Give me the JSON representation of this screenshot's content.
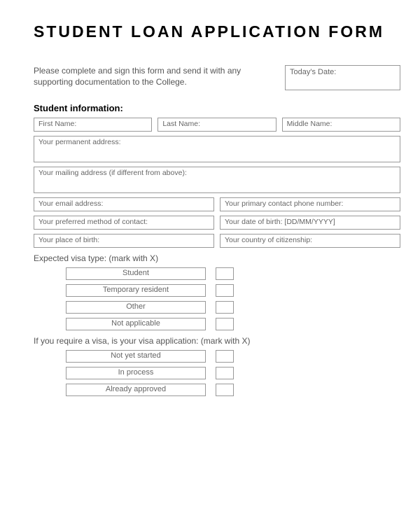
{
  "title": "STUDENT LOAN APPLICATION FORM",
  "intro": "Please complete and sign this form and send it with any supporting documentation to the College.",
  "date_label": "Today's Date:",
  "section_student": "Student information:",
  "fields": {
    "first": "First Name:",
    "last": "Last Name:",
    "middle": "Middle Name:",
    "perm_addr": "Your permanent address:",
    "mail_addr": "Your mailing address (if different from above):",
    "email": "Your email address:",
    "phone": "Your primary contact phone number:",
    "contact_method": "Your preferred method of contact:",
    "dob": "Your date of birth:   [DD/MM/YYYY]",
    "pob": "Your place of birth:",
    "citizenship": "Your country of citizenship:"
  },
  "visa_type_label": "Expected visa type:  (mark with X)",
  "visa_opts": {
    "student": "Student",
    "temp": "Temporary resident",
    "other": "Other",
    "na": "Not applicable"
  },
  "visa_app_label": "If you require a visa, is your visa application: (mark with X)",
  "visa_app_opts": {
    "not_started": "Not yet started",
    "in_process": "In process",
    "approved": "Already approved"
  }
}
